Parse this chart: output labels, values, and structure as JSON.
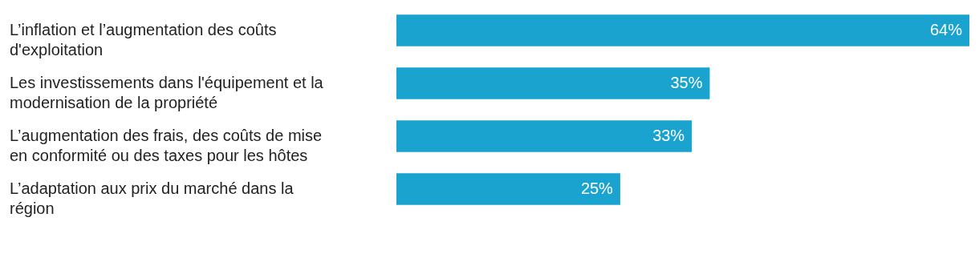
{
  "chart_data": {
    "type": "bar",
    "orientation": "horizontal",
    "categories": [
      "L’inflation et l’augmentation des coûts d'exploitation",
      "Les investissements dans l'équipement et la modernisation de la propriété",
      "L’augmentation des frais, des coûts de mise en conformité ou des taxes pour les hôtes",
      "L’adaptation aux prix du marché dans la région"
    ],
    "values": [
      64,
      35,
      33,
      25
    ],
    "value_labels": [
      "64%",
      "35%",
      "33%",
      "25%"
    ],
    "color": "#1aa3cf"
  }
}
